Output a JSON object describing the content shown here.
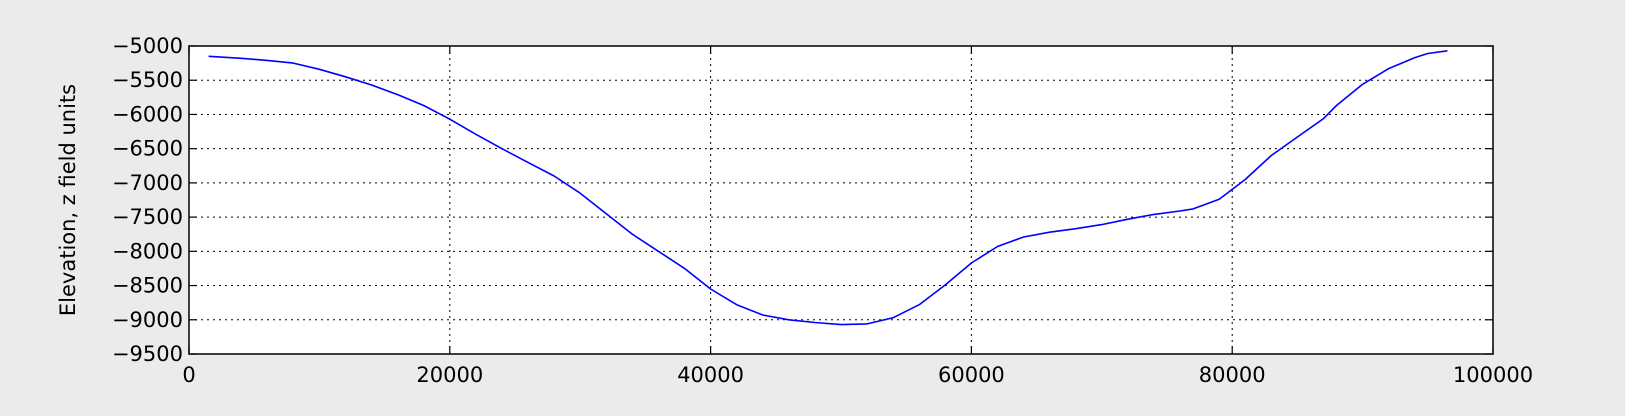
{
  "chart_data": {
    "type": "line",
    "title": "",
    "xlabel": "",
    "ylabel": "Elevation, z field units",
    "xlim": [
      0,
      100000
    ],
    "ylim": [
      -9500,
      -5000
    ],
    "xticks": [
      0,
      20000,
      40000,
      60000,
      80000,
      100000
    ],
    "xtick_labels": [
      "0",
      "20000",
      "40000",
      "60000",
      "80000",
      "100000"
    ],
    "yticks": [
      -5000,
      -5500,
      -6000,
      -6500,
      -7000,
      -7500,
      -8000,
      -8500,
      -9000,
      -9500
    ],
    "ytick_labels": [
      "−5000",
      "−5500",
      "−6000",
      "−6500",
      "−7000",
      "−7500",
      "−8000",
      "−8500",
      "−9000",
      "−9500"
    ],
    "grid": true,
    "line_color": "#0000ff",
    "series": [
      {
        "x": [
          1500,
          4000,
          6000,
          8000,
          10000,
          12000,
          14000,
          16000,
          18000,
          20000,
          22000,
          24000,
          26000,
          28000,
          30000,
          32000,
          34000,
          36000,
          38000,
          40000,
          42000,
          44000,
          46000,
          48000,
          50000,
          52000,
          54000,
          56000,
          58000,
          60000,
          62000,
          64000,
          66000,
          68000,
          70000,
          72000,
          74000,
          76000,
          77000,
          79000,
          81000,
          83000,
          85000,
          87000,
          88000,
          90000,
          92000,
          94000,
          95000,
          96500
        ],
        "y": [
          -5150,
          -5180,
          -5210,
          -5250,
          -5340,
          -5450,
          -5570,
          -5710,
          -5870,
          -6070,
          -6290,
          -6500,
          -6700,
          -6900,
          -7150,
          -7450,
          -7750,
          -8000,
          -8250,
          -8550,
          -8780,
          -8930,
          -9000,
          -9040,
          -9070,
          -9060,
          -8970,
          -8780,
          -8490,
          -8170,
          -7930,
          -7790,
          -7720,
          -7670,
          -7610,
          -7530,
          -7460,
          -7410,
          -7380,
          -7240,
          -6950,
          -6600,
          -6330,
          -6060,
          -5870,
          -5560,
          -5330,
          -5170,
          -5110,
          -5070
        ]
      }
    ]
  }
}
